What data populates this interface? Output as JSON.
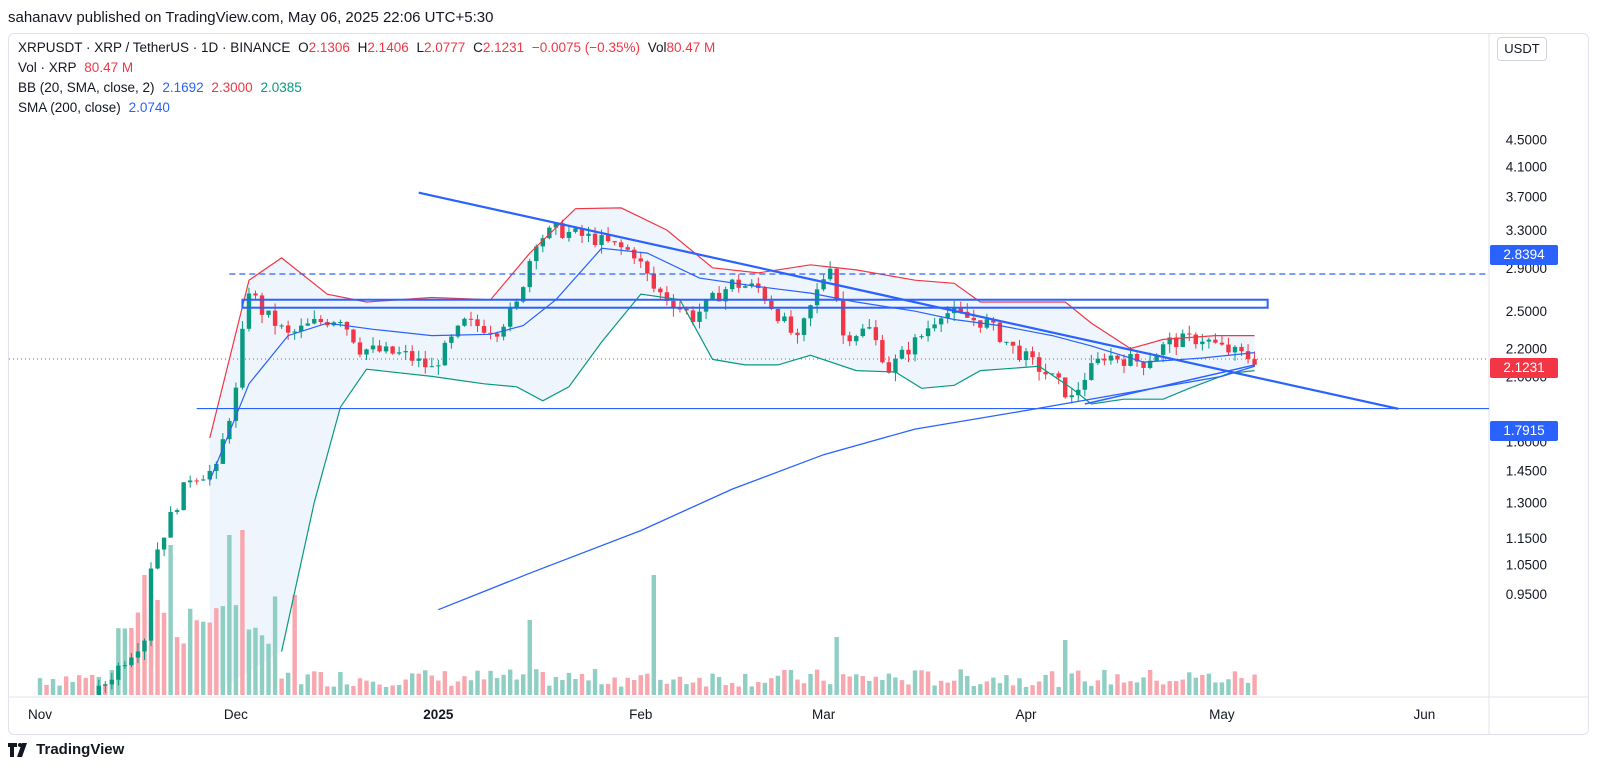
{
  "publish_line": "sahanavv published on TradingView.com, May 06, 2025 22:06 UTC+5:30",
  "legend": {
    "symbol_line": {
      "symbol": "XRPUSDT · XRP / TetherUS · 1D · BINANCE",
      "o_label": "O",
      "o": "2.1306",
      "h_label": "H",
      "h": "2.1406",
      "l_label": "L",
      "l": "2.0777",
      "c_label": "C",
      "c": "2.1231",
      "change": "−0.0075 (−0.35%)",
      "vol_label": "Vol",
      "vol": "80.47 M"
    },
    "vol_line": {
      "label": "Vol · XRP",
      "value": "80.47 M"
    },
    "bb_line": {
      "label": "BB (20, SMA, close, 2)",
      "basis": "2.1692",
      "upper": "2.3000",
      "lower": "2.0385"
    },
    "sma_line": {
      "label": "SMA (200, close)",
      "value": "2.0740"
    }
  },
  "unit_label": "USDT",
  "footer_brand": "TradingView",
  "colors": {
    "up": "#089981",
    "down": "#f23645",
    "bb_upper": "#f23645",
    "bb_lower": "#089981",
    "bb_basis": "#2962ff",
    "sma": "#2962ff",
    "trendline": "#2962ff",
    "vol_up": "#8fcfc3",
    "vol_down": "#f7a7ad",
    "bb_fill": "#eaf2fb"
  },
  "price_tags": {
    "resistance": "2.8394",
    "last": "2.1231",
    "support": "1.7915"
  },
  "chart_data": {
    "type": "candlestick",
    "y_scale": "log",
    "y_ticks": [
      "4.5000",
      "4.1000",
      "3.7000",
      "3.3000",
      "2.9000",
      "2.5000",
      "2.2000",
      "2.0000",
      "1.6000",
      "1.4500",
      "1.3000",
      "1.1500",
      "1.0500",
      "0.9500"
    ],
    "x_ticks": [
      "Nov",
      "Dec",
      "2025",
      "Feb",
      "Mar",
      "Apr",
      "May",
      "Jun"
    ],
    "bb_upper": [
      [
        "2024-11-27",
        1.62
      ],
      [
        "2024-12-03",
        2.78
      ],
      [
        "2024-12-08",
        3.0
      ],
      [
        "2024-12-15",
        2.65
      ],
      [
        "2024-12-21",
        2.58
      ],
      [
        "2024-12-31",
        2.62
      ],
      [
        "2025-01-09",
        2.6
      ],
      [
        "2025-01-15",
        3.05
      ],
      [
        "2025-01-22",
        3.55
      ],
      [
        "2025-01-29",
        3.56
      ],
      [
        "2025-02-05",
        3.3
      ],
      [
        "2025-02-12",
        2.9
      ],
      [
        "2025-02-19",
        2.85
      ],
      [
        "2025-02-27",
        2.93
      ],
      [
        "2025-03-06",
        2.88
      ],
      [
        "2025-03-15",
        2.78
      ],
      [
        "2025-03-21",
        2.75
      ],
      [
        "2025-03-25",
        2.58
      ],
      [
        "2025-03-31",
        2.58
      ],
      [
        "2025-04-07",
        2.58
      ],
      [
        "2025-04-11",
        2.4
      ],
      [
        "2025-04-17",
        2.2
      ],
      [
        "2025-04-22",
        2.27
      ],
      [
        "2025-04-30",
        2.3
      ],
      [
        "2025-05-06",
        2.3
      ]
    ],
    "bb_basis": [
      [
        "2024-11-27",
        1.4
      ],
      [
        "2024-12-03",
        1.95
      ],
      [
        "2024-12-09",
        2.3
      ],
      [
        "2024-12-15",
        2.4
      ],
      [
        "2024-12-22",
        2.35
      ],
      [
        "2024-12-31",
        2.3
      ],
      [
        "2025-01-09",
        2.31
      ],
      [
        "2025-01-14",
        2.38
      ],
      [
        "2025-01-19",
        2.6
      ],
      [
        "2025-01-26",
        3.1
      ],
      [
        "2025-02-02",
        3.05
      ],
      [
        "2025-02-10",
        2.8
      ],
      [
        "2025-02-19",
        2.72
      ],
      [
        "2025-02-27",
        2.66
      ],
      [
        "2025-03-06",
        2.58
      ],
      [
        "2025-03-15",
        2.5
      ],
      [
        "2025-03-21",
        2.43
      ],
      [
        "2025-03-28",
        2.38
      ],
      [
        "2025-04-05",
        2.3
      ],
      [
        "2025-04-11",
        2.22
      ],
      [
        "2025-04-19",
        2.1
      ],
      [
        "2025-04-28",
        2.13
      ],
      [
        "2025-05-06",
        2.17
      ]
    ],
    "bb_lower": [
      [
        "2024-12-08",
        0.78
      ],
      [
        "2024-12-13",
        1.3
      ],
      [
        "2024-12-17",
        1.8
      ],
      [
        "2024-12-21",
        2.05
      ],
      [
        "2024-12-31",
        2.0
      ],
      [
        "2025-01-08",
        1.95
      ],
      [
        "2025-01-13",
        1.93
      ],
      [
        "2025-01-17",
        1.84
      ],
      [
        "2025-01-21",
        1.93
      ],
      [
        "2025-01-26",
        2.25
      ],
      [
        "2025-02-01",
        2.65
      ],
      [
        "2025-02-07",
        2.6
      ],
      [
        "2025-02-12",
        2.12
      ],
      [
        "2025-02-17",
        2.08
      ],
      [
        "2025-02-22",
        2.08
      ],
      [
        "2025-02-27",
        2.15
      ],
      [
        "2025-03-06",
        2.04
      ],
      [
        "2025-03-12",
        2.03
      ],
      [
        "2025-03-16",
        1.92
      ],
      [
        "2025-03-21",
        1.94
      ],
      [
        "2025-03-25",
        2.04
      ],
      [
        "2025-04-03",
        2.07
      ],
      [
        "2025-04-08",
        1.92
      ],
      [
        "2025-04-11",
        1.82
      ],
      [
        "2025-04-16",
        1.85
      ],
      [
        "2025-04-22",
        1.85
      ],
      [
        "2025-04-26",
        1.92
      ],
      [
        "2025-05-02",
        2.02
      ],
      [
        "2025-05-06",
        2.04
      ]
    ],
    "sma200": [
      [
        "2025-01-01",
        0.9
      ],
      [
        "2025-01-15",
        1.02
      ],
      [
        "2025-02-01",
        1.18
      ],
      [
        "2025-02-15",
        1.36
      ],
      [
        "2025-03-01",
        1.53
      ],
      [
        "2025-03-15",
        1.67
      ],
      [
        "2025-04-01",
        1.78
      ],
      [
        "2025-04-15",
        1.88
      ],
      [
        "2025-05-01",
        2.0
      ],
      [
        "2025-05-06",
        2.07
      ]
    ],
    "trendline_desc": [
      [
        "2024-12-29",
        3.75
      ],
      [
        "2025-05-28",
        1.79
      ]
    ],
    "trendline_asc": [
      [
        "2025-04-10",
        1.82
      ],
      [
        "2025-05-06",
        2.08
      ]
    ],
    "horizontal_lines": [
      {
        "value": 2.8394,
        "style": "dashed",
        "from": "2024-11-30"
      },
      {
        "value": 1.7915,
        "style": "solid",
        "from": "2024-11-25"
      }
    ],
    "zone": {
      "from": "2024-12-02",
      "to": "2025-05-08",
      "top": 2.6,
      "bottom": 2.53
    },
    "last_price": 2.1231,
    "candle_anchors": [
      [
        "2024-11-18",
        1.05
      ],
      [
        "2024-11-24",
        1.42
      ],
      [
        "2024-11-28",
        1.45
      ],
      [
        "2024-12-01",
        1.9
      ],
      [
        "2024-12-03",
        2.7
      ],
      [
        "2024-12-05",
        2.5
      ],
      [
        "2024-12-09",
        2.3
      ],
      [
        "2024-12-13",
        2.4
      ],
      [
        "2024-12-17",
        2.45
      ],
      [
        "2024-12-20",
        2.2
      ],
      [
        "2024-12-27",
        2.15
      ],
      [
        "2024-12-31",
        2.05
      ],
      [
        "2025-01-05",
        2.4
      ],
      [
        "2025-01-10",
        2.35
      ],
      [
        "2025-01-13",
        2.55
      ],
      [
        "2025-01-16",
        3.2
      ],
      [
        "2025-01-19",
        3.3
      ],
      [
        "2025-01-25",
        3.2
      ],
      [
        "2025-01-31",
        3.05
      ],
      [
        "2025-02-03",
        2.7
      ],
      [
        "2025-02-09",
        2.45
      ],
      [
        "2025-02-15",
        2.75
      ],
      [
        "2025-02-19",
        2.7
      ],
      [
        "2025-02-25",
        2.25
      ],
      [
        "2025-03-02",
        2.95
      ],
      [
        "2025-03-04",
        2.3
      ],
      [
        "2025-03-08",
        2.35
      ],
      [
        "2025-03-11",
        2.05
      ],
      [
        "2025-03-16",
        2.3
      ],
      [
        "2025-03-19",
        2.5
      ],
      [
        "2025-03-26",
        2.4
      ],
      [
        "2025-03-30",
        2.2
      ],
      [
        "2025-04-06",
        1.95
      ],
      [
        "2025-04-08",
        1.85
      ],
      [
        "2025-04-10",
        2.0
      ],
      [
        "2025-04-13",
        2.15
      ],
      [
        "2025-04-19",
        2.1
      ],
      [
        "2025-04-23",
        2.25
      ],
      [
        "2025-04-28",
        2.28
      ],
      [
        "2025-05-01",
        2.2
      ],
      [
        "2025-05-06",
        2.12
      ]
    ]
  }
}
